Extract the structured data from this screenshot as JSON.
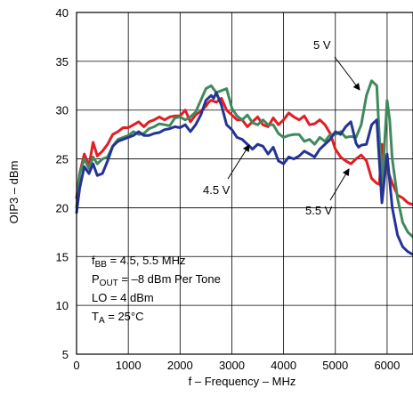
{
  "chart_data": {
    "type": "line",
    "xlabel": "f – Frequency – MHz",
    "ylabel": "OIP3 – dBm",
    "xlim": [
      0,
      6500
    ],
    "ylim": [
      5,
      40
    ],
    "xticks": [
      0,
      1000,
      2000,
      3000,
      4000,
      5000,
      6000
    ],
    "yticks": [
      5,
      10,
      15,
      20,
      25,
      30,
      35,
      40
    ],
    "xtick_labels": [
      "0",
      "1000",
      "2000",
      "3000",
      "4000",
      "5000",
      "6000"
    ],
    "ytick_labels": [
      "5",
      "10",
      "15",
      "20",
      "25",
      "30",
      "35",
      "40"
    ],
    "grid": true,
    "series": [
      {
        "name": "5.5 V",
        "color": "#e41c23",
        "x": [
          0,
          60,
          150,
          240,
          320,
          400,
          500,
          600,
          700,
          800,
          900,
          1000,
          1100,
          1200,
          1300,
          1400,
          1500,
          1600,
          1700,
          1800,
          1900,
          2000,
          2100,
          2200,
          2300,
          2400,
          2500,
          2550,
          2600,
          2700,
          2800,
          2900,
          3000,
          3100,
          3200,
          3300,
          3400,
          3500,
          3600,
          3700,
          3800,
          3900,
          4000,
          4100,
          4200,
          4300,
          4400,
          4500,
          4600,
          4700,
          4800,
          4900,
          5000,
          5100,
          5200,
          5300,
          5400,
          5500,
          5600,
          5700,
          5800,
          5850,
          5900,
          6000,
          6100,
          6200,
          6300,
          6400,
          6500
        ],
        "y": [
          21,
          23.5,
          25.5,
          24.3,
          26.7,
          25.3,
          25.8,
          26.5,
          27.5,
          27.8,
          28.2,
          28.2,
          28.5,
          28.8,
          28.3,
          28.8,
          29.0,
          29.3,
          29.0,
          29.3,
          29.4,
          29.4,
          30.0,
          28.8,
          29.5,
          29.9,
          30.4,
          30.8,
          31.0,
          30.8,
          31.2,
          30.0,
          29.5,
          29.0,
          29.0,
          28.3,
          28.8,
          29.3,
          28.5,
          28.3,
          29.2,
          28.5,
          29.0,
          29.7,
          29.3,
          29.0,
          29.4,
          28.5,
          28.6,
          29.0,
          28.5,
          27.6,
          26.0,
          25.2,
          24.8,
          24.5,
          25.0,
          25.4,
          24.8,
          23.0,
          22.5,
          22.4,
          26.5,
          24.0,
          22.5,
          21.3,
          21.0,
          20.5,
          20.3
        ]
      },
      {
        "name": "5 V",
        "color": "#3f8a5c",
        "x": [
          0,
          60,
          150,
          240,
          320,
          400,
          500,
          600,
          700,
          800,
          900,
          1000,
          1100,
          1200,
          1300,
          1400,
          1500,
          1600,
          1700,
          1800,
          1900,
          2000,
          2100,
          2200,
          2300,
          2400,
          2500,
          2600,
          2700,
          2800,
          2900,
          3000,
          3100,
          3200,
          3300,
          3400,
          3500,
          3600,
          3700,
          3800,
          3900,
          4000,
          4100,
          4200,
          4300,
          4400,
          4500,
          4600,
          4700,
          4800,
          4900,
          5000,
          5100,
          5200,
          5300,
          5400,
          5500,
          5600,
          5700,
          5800,
          5900,
          6000,
          6050,
          6100,
          6200,
          6300,
          6400,
          6500
        ],
        "y": [
          20,
          23.5,
          25.0,
          24.0,
          25.2,
          24.5,
          25.0,
          25.2,
          26.3,
          27.0,
          27.2,
          27.4,
          27.8,
          27.5,
          27.6,
          28.1,
          28.3,
          28.6,
          28.5,
          28.4,
          29.2,
          29.3,
          29.0,
          29.3,
          29.8,
          31.0,
          32.2,
          32.5,
          31.8,
          32.0,
          32.2,
          30.2,
          29.4,
          29.0,
          29.5,
          28.7,
          28.5,
          29.0,
          28.5,
          28.5,
          27.6,
          27.2,
          27.4,
          27.5,
          27.5,
          26.8,
          27.0,
          26.5,
          27.2,
          26.8,
          27.5,
          27.5,
          27.8,
          27.2,
          27.3,
          27.2,
          28.5,
          31.5,
          33.0,
          32.5,
          22.0,
          31.0,
          29.0,
          25.0,
          21.0,
          18.5,
          17.5,
          17.0
        ]
      },
      {
        "name": "4.5 V",
        "color": "#253494",
        "x": [
          0,
          60,
          150,
          240,
          320,
          400,
          500,
          600,
          700,
          800,
          900,
          1000,
          1100,
          1200,
          1300,
          1400,
          1500,
          1600,
          1700,
          1800,
          1900,
          2000,
          2100,
          2200,
          2300,
          2400,
          2500,
          2600,
          2650,
          2700,
          2800,
          2900,
          3000,
          3100,
          3200,
          3300,
          3400,
          3500,
          3600,
          3700,
          3800,
          3900,
          4000,
          4100,
          4200,
          4300,
          4400,
          4500,
          4600,
          4700,
          4800,
          4900,
          5000,
          5100,
          5200,
          5300,
          5400,
          5450,
          5500,
          5600,
          5700,
          5800,
          5900,
          6000,
          6100,
          6200,
          6300,
          6400,
          6500
        ],
        "y": [
          19.5,
          22.0,
          24.2,
          23.5,
          24.5,
          23.3,
          23.5,
          24.8,
          26.3,
          26.8,
          27.0,
          27.2,
          27.4,
          27.8,
          27.4,
          27.4,
          27.6,
          27.7,
          28.0,
          28.1,
          28.3,
          28.2,
          28.5,
          27.8,
          28.5,
          29.5,
          31.0,
          31.5,
          31.2,
          31.8,
          30.5,
          28.5,
          28.0,
          27.2,
          27.0,
          26.5,
          26.0,
          26.5,
          26.3,
          25.5,
          26.2,
          24.8,
          24.5,
          25.2,
          25.0,
          25.3,
          25.8,
          25.5,
          25.2,
          26.0,
          26.5,
          27.0,
          27.8,
          27.5,
          28.3,
          28.8,
          26.6,
          26.2,
          26.4,
          26.5,
          28.5,
          29.0,
          20.5,
          25.5,
          20.0,
          17.2,
          16.0,
          15.5,
          15.2
        ]
      }
    ],
    "annotations": {
      "label_5v": "5 V",
      "label_4p5v": "4.5 V",
      "label_5p5v": "5.5 V"
    },
    "conditions": {
      "fbb_main": "f",
      "fbb_sub": "BB",
      "fbb_rest": " = 4.5, 5.5 MHz",
      "pout_main": "P",
      "pout_sub": "OUT",
      "pout_rest": " = –8 dBm Per Tone",
      "lo": "LO = 4 dBm",
      "ta_main": "T",
      "ta_sub": "A",
      "ta_rest": " = 25°C"
    }
  }
}
